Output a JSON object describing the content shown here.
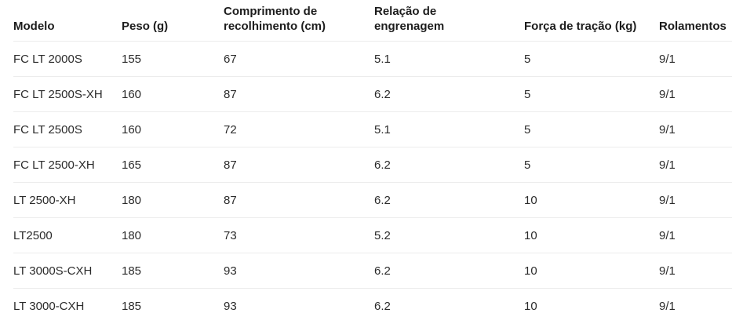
{
  "table": {
    "columns": [
      {
        "label": "Modelo"
      },
      {
        "label": "Peso (g)"
      },
      {
        "label": "Comprimento de\nrecolhimento (cm)"
      },
      {
        "label": "Relação de\nengrenagem"
      },
      {
        "label": "Força de tração (kg)"
      },
      {
        "label": "Rolamentos"
      }
    ],
    "rows": [
      [
        "FC LT 2000S",
        "155",
        "67",
        "5.1",
        "5",
        "9/1"
      ],
      [
        "FC LT 2500S-XH",
        "160",
        "87",
        "6.2",
        "5",
        "9/1"
      ],
      [
        "FC LT 2500S",
        "160",
        "72",
        "5.1",
        "5",
        "9/1"
      ],
      [
        "FC LT 2500-XH",
        "165",
        "87",
        "6.2",
        "5",
        "9/1"
      ],
      [
        "LT 2500-XH",
        "180",
        "87",
        "6.2",
        "10",
        "9/1"
      ],
      [
        "LT2500",
        "180",
        "73",
        "5.2",
        "10",
        "9/1"
      ],
      [
        "LT 3000S-CXH",
        "185",
        "93",
        "6.2",
        "10",
        "9/1"
      ],
      [
        "LT 3000-CXH",
        "185",
        "93",
        "6.2",
        "10",
        "9/1"
      ]
    ]
  },
  "colors": {
    "background": "#ffffff",
    "header_text": "#1c1c1c",
    "body_text": "#2b2b2b",
    "row_border": "#ececec"
  }
}
